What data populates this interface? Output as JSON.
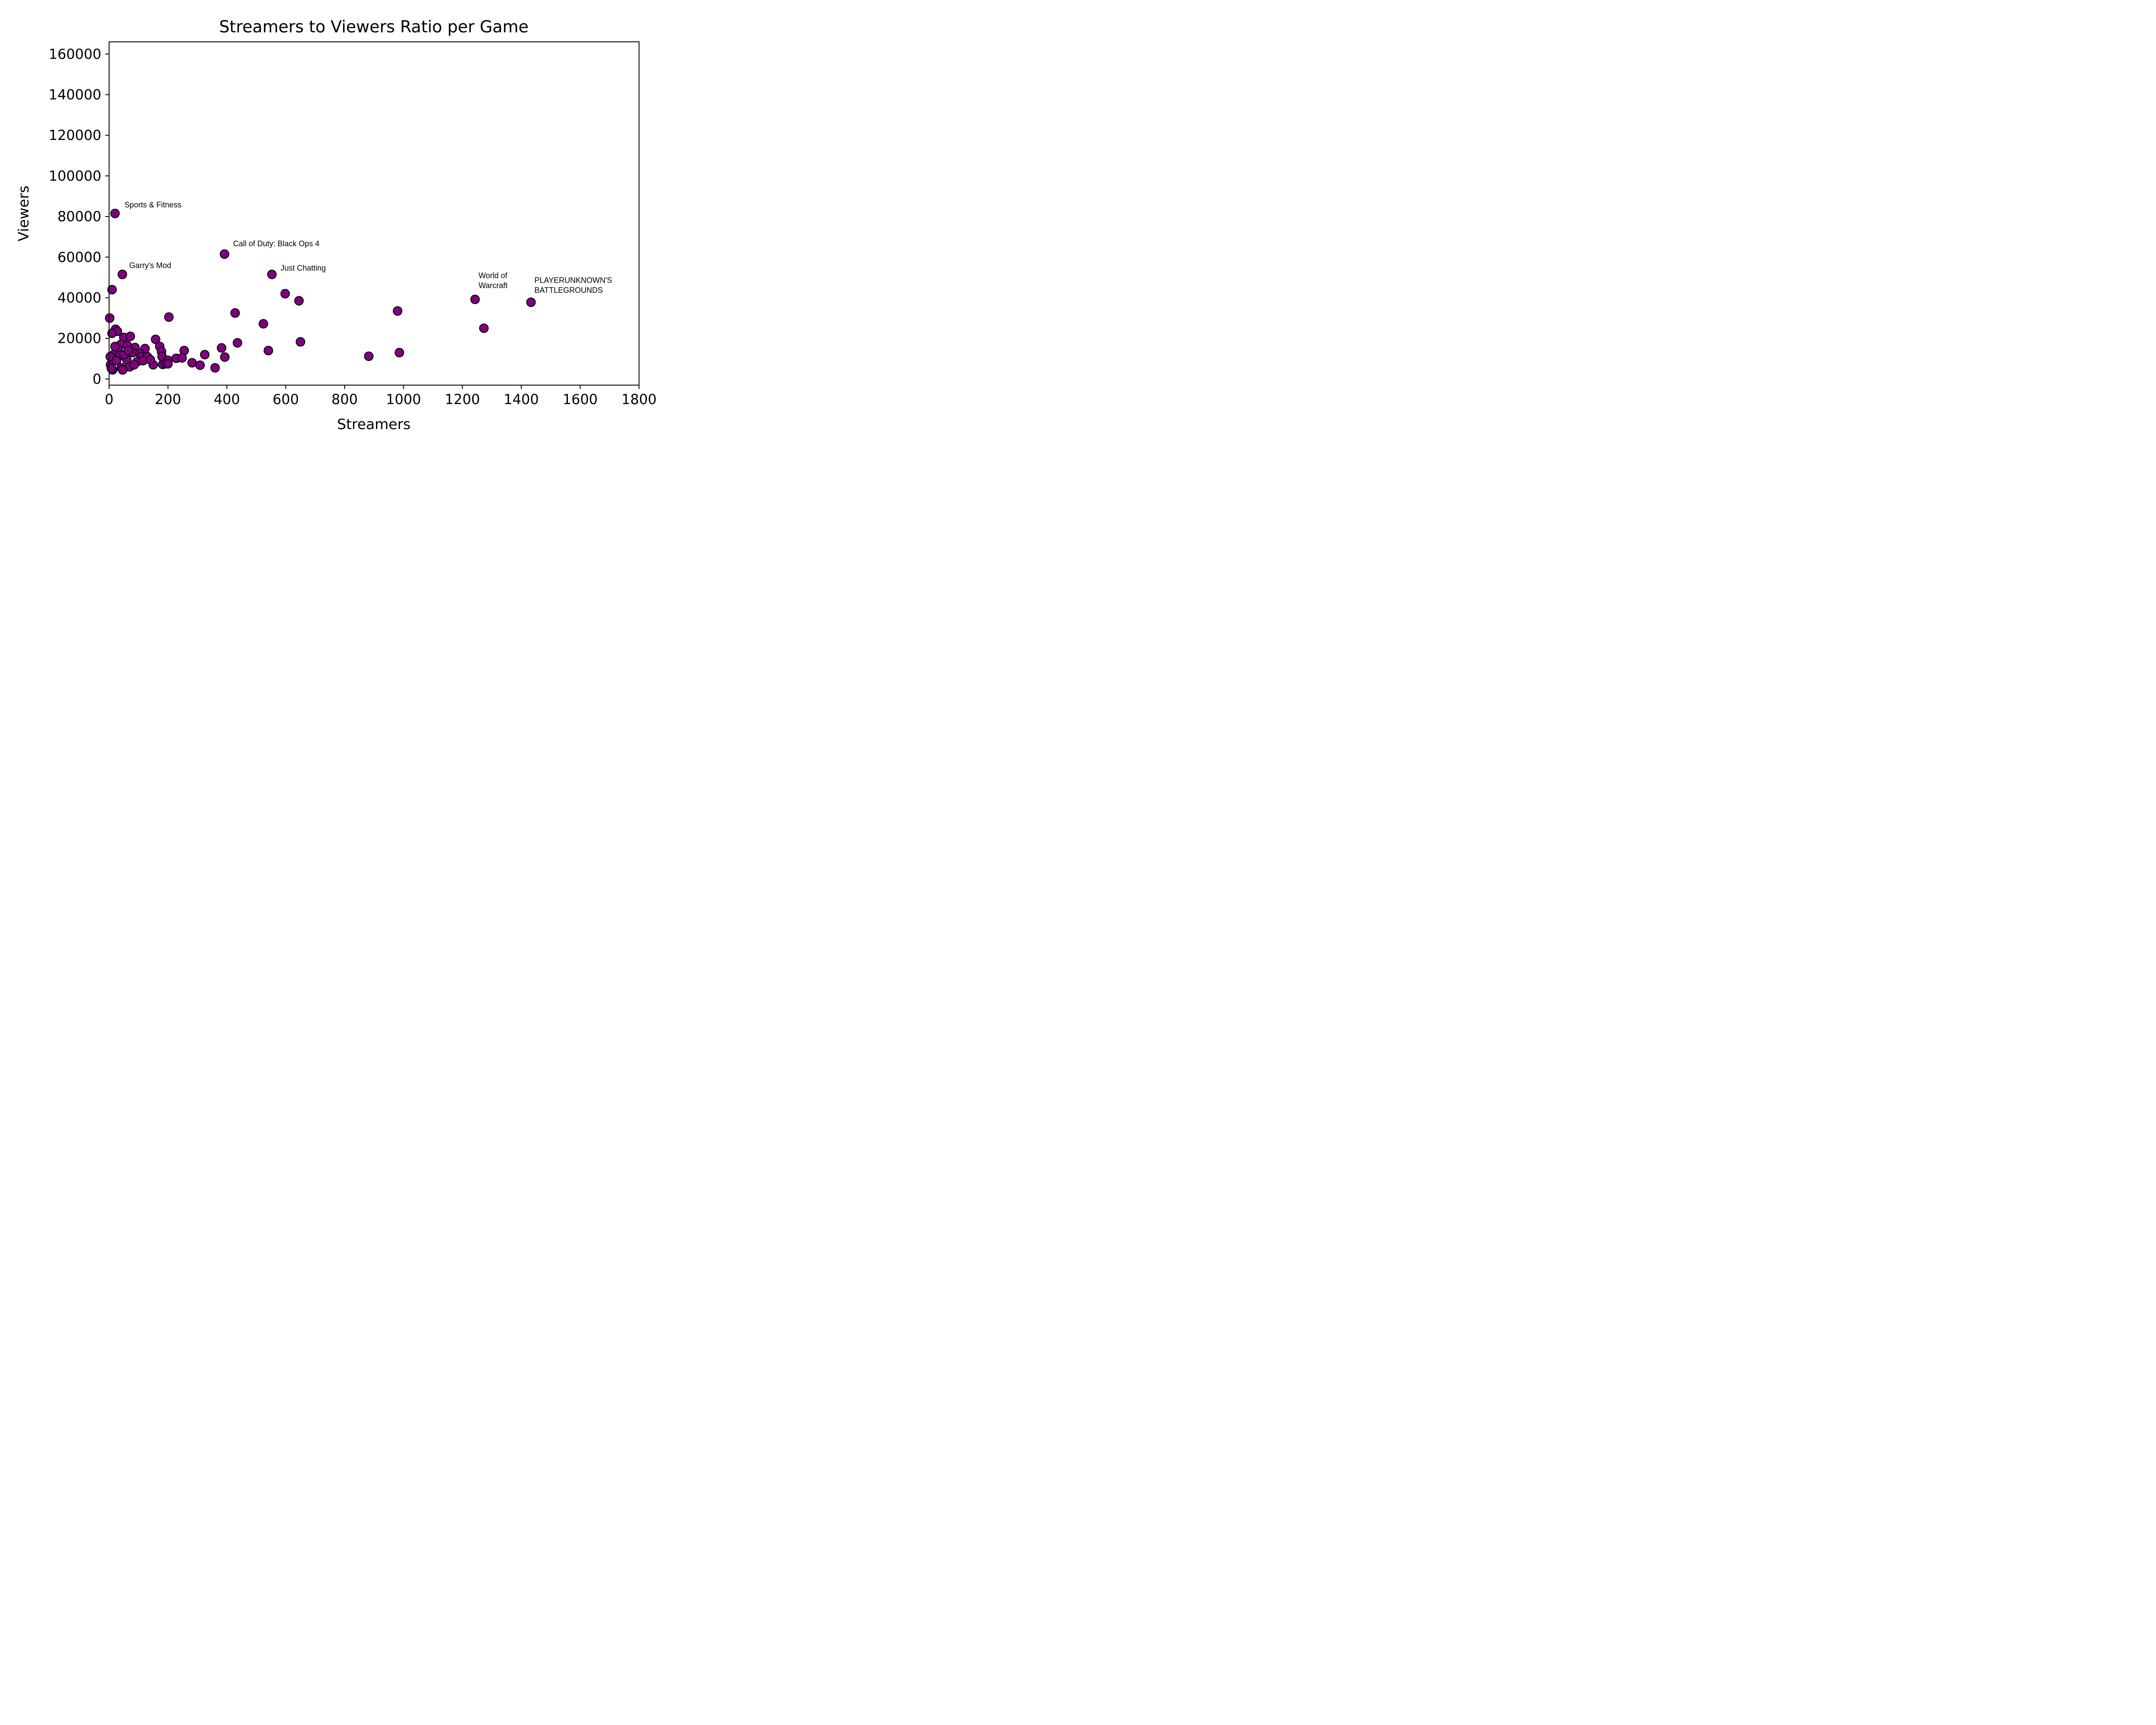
{
  "chart_data": {
    "type": "scatter",
    "title": "Streamers to Viewers Ratio per Game",
    "xlabel": "Streamers",
    "ylabel": "Viewers",
    "xlim": [
      0,
      1800
    ],
    "ylim": [
      -3000,
      166000
    ],
    "xticks": [
      0,
      200,
      400,
      600,
      800,
      1000,
      1200,
      1400,
      1600,
      1800
    ],
    "yticks": [
      0,
      20000,
      40000,
      60000,
      80000,
      100000,
      120000,
      140000,
      160000
    ],
    "grid": false,
    "marker_color": "#800080",
    "marker_edge_color": "#000000",
    "points": [
      [
        20,
        81500
      ],
      [
        392,
        61500
      ],
      [
        45,
        51500
      ],
      [
        553,
        51500
      ],
      [
        10,
        44000
      ],
      [
        598,
        42000
      ],
      [
        645,
        38500
      ],
      [
        1243,
        39200
      ],
      [
        1433,
        37800
      ],
      [
        428,
        32500
      ],
      [
        980,
        33500
      ],
      [
        2,
        30000
      ],
      [
        203,
        30500
      ],
      [
        524,
        27200
      ],
      [
        1273,
        25000
      ],
      [
        22,
        24500
      ],
      [
        28,
        23500
      ],
      [
        10,
        22500
      ],
      [
        50,
        20500
      ],
      [
        72,
        21000
      ],
      [
        158,
        19500
      ],
      [
        436,
        17800
      ],
      [
        650,
        18300
      ],
      [
        172,
        16000
      ],
      [
        40,
        17000
      ],
      [
        62,
        16500
      ],
      [
        88,
        15500
      ],
      [
        122,
        15000
      ],
      [
        382,
        15300
      ],
      [
        541,
        14000
      ],
      [
        255,
        14000
      ],
      [
        178,
        13500
      ],
      [
        30,
        14500
      ],
      [
        80,
        13000
      ],
      [
        105,
        12500
      ],
      [
        325,
        12000
      ],
      [
        15,
        12000
      ],
      [
        36,
        11500
      ],
      [
        110,
        11000
      ],
      [
        130,
        11000
      ],
      [
        180,
        11000
      ],
      [
        393,
        10800
      ],
      [
        882,
        11200
      ],
      [
        986,
        13000
      ],
      [
        4,
        11000
      ],
      [
        228,
        10200
      ],
      [
        248,
        10400
      ],
      [
        200,
        9200
      ],
      [
        95,
        8500
      ],
      [
        60,
        9500
      ],
      [
        115,
        9000
      ],
      [
        282,
        8000
      ],
      [
        309,
        6800
      ],
      [
        150,
        7000
      ],
      [
        182,
        7200
      ],
      [
        192,
        7500
      ],
      [
        200,
        7500
      ],
      [
        5,
        7000
      ],
      [
        70,
        6000
      ],
      [
        42,
        5500
      ],
      [
        360,
        5500
      ],
      [
        12,
        4500
      ],
      [
        46,
        4500
      ],
      [
        8,
        5200
      ],
      [
        25,
        9000
      ],
      [
        50,
        12000
      ],
      [
        20,
        16000
      ],
      [
        65,
        14000
      ],
      [
        140,
        9500
      ],
      [
        85,
        7000
      ]
    ],
    "annotations": [
      {
        "lines": [
          "Sports & Fitness"
        ],
        "x": 20,
        "y": 81500,
        "dx": 22,
        "dy": -14
      },
      {
        "lines": [
          "Call of Duty: Black Ops 4"
        ],
        "x": 392,
        "y": 61500,
        "dx": 20,
        "dy": -18
      },
      {
        "lines": [
          "Garry's Mod"
        ],
        "x": 45,
        "y": 51500,
        "dx": 16,
        "dy": -15
      },
      {
        "lines": [
          "Just Chatting"
        ],
        "x": 553,
        "y": 51500,
        "dx": 20,
        "dy": -9
      },
      {
        "lines": [
          "World of",
          "Warcraft"
        ],
        "x": 1243,
        "y": 39200,
        "dx": 8,
        "dy": -49
      },
      {
        "lines": [
          "PLAYERUNKNOWN'S",
          "BATTLEGROUNDS"
        ],
        "x": 1433,
        "y": 37800,
        "dx": 8,
        "dy": -45
      }
    ]
  }
}
